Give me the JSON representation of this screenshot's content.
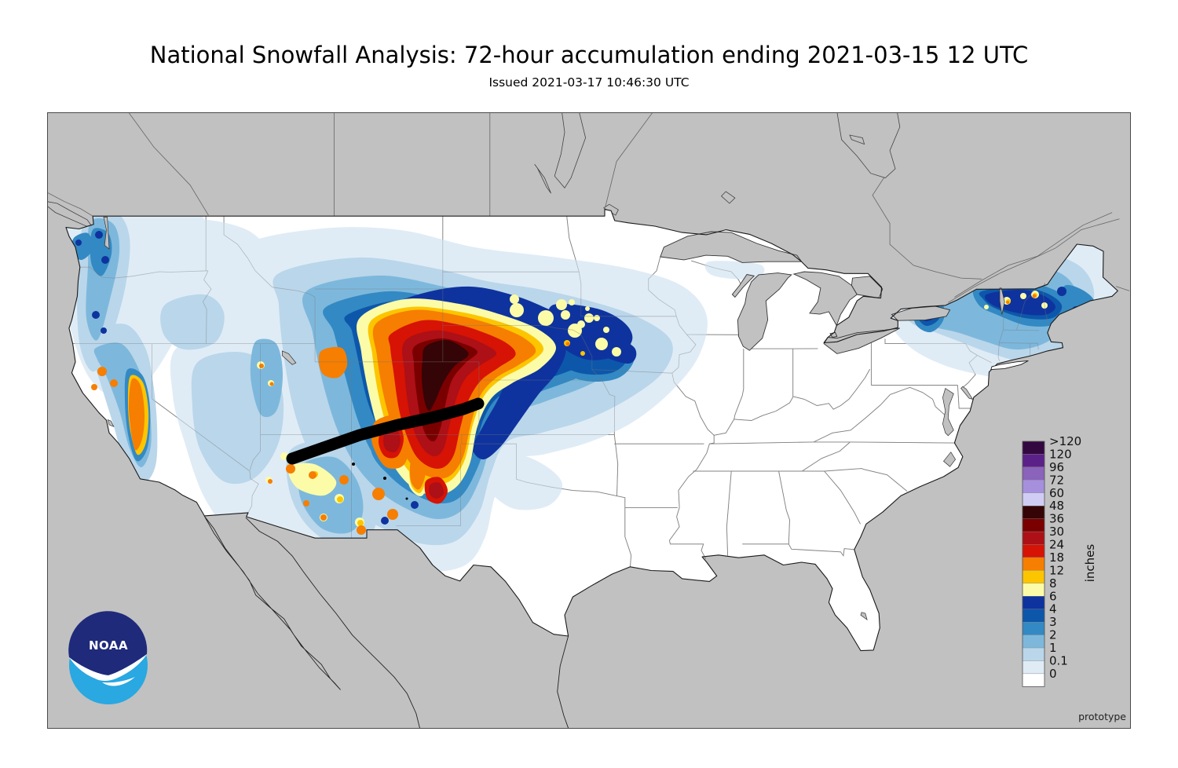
{
  "title": "National Snowfall Analysis: 72-hour accumulation ending 2021-03-15 12 UTC",
  "subtitle": "Issued 2021-03-17 10:46:30 UTC",
  "map": {
    "footnote": "prototype",
    "logo_text": "NOAA",
    "background_color": "#c1c1c1",
    "land_color": "#ffffff",
    "no_data_swath_color": "#000000",
    "logo_navy": "#1f2a7b",
    "logo_cyan": "#29a8e2"
  },
  "colorbar": {
    "unit_label": "inches",
    "tick_labels": [
      ">120",
      "120",
      "96",
      "72",
      "60",
      "48",
      "36",
      "30",
      "24",
      "18",
      "12",
      "8",
      "6",
      "4",
      "3",
      "2",
      "1",
      "0.1",
      "0"
    ],
    "colors_top_to_bottom": [
      "#330841",
      "#5c2189",
      "#8a63ba",
      "#a690dd",
      "#cfcdf3",
      "#350406",
      "#7a0000",
      "#ad1016",
      "#d61304",
      "#f67e00",
      "#fdc500",
      "#fcfca8",
      "#0e339e",
      "#0d57aa",
      "#3389c3",
      "#7db8dc",
      "#bad6ea",
      "#dfecf6",
      "#ffffff"
    ]
  },
  "chart_data": {
    "type": "heatmap",
    "title": "National Snowfall Analysis: 72-hour accumulation ending 2021-03-15 12 UTC",
    "subtitle": "Issued 2021-03-17 10:46:30 UTC",
    "unit": "inches",
    "legend_position": "right",
    "thresholds_inches": [
      0,
      0.1,
      1,
      2,
      3,
      4,
      6,
      8,
      12,
      18,
      24,
      30,
      36,
      48,
      60,
      72,
      96,
      120
    ],
    "colors_low_to_high": [
      "#ffffff",
      "#dfecf6",
      "#bad6ea",
      "#7db8dc",
      "#3389c3",
      "#0d57aa",
      "#0e339e",
      "#fcfca8",
      "#fdc500",
      "#f67e00",
      "#d61304",
      "#ad1016",
      "#7a0000",
      "#350406",
      "#cfcdf3",
      "#a690dd",
      "#8a63ba",
      "#5c2189",
      "#330841"
    ],
    "max_category_label": ">120",
    "features": [
      "Maximum band of 24-48 in over the Colorado Front Range and Medicine Bow ranges into southeast Wyoming and the Nebraska panhandle",
      "4-6 in arc from central Wyoming across western Nebraska and South Dakota into southwest Minnesota",
      "6-12 in pockets over southwest Minnesota and southeast South Dakota",
      "Thick black no-data swath from northern Arizona across southern Colorado",
      "2-6 in over the Washington and Oregon Cascades and Olympics",
      "8-18 in along the Sierra Nevada and Trinity Alps crest",
      "1-6 in over northern New York, Vermont, New Hampshire and Maine with isolated 8-18 in summits",
      "Light 0.1-2 in accumulation over the Great Basin, Utah, Arizona and New Mexico high terrain"
    ]
  }
}
